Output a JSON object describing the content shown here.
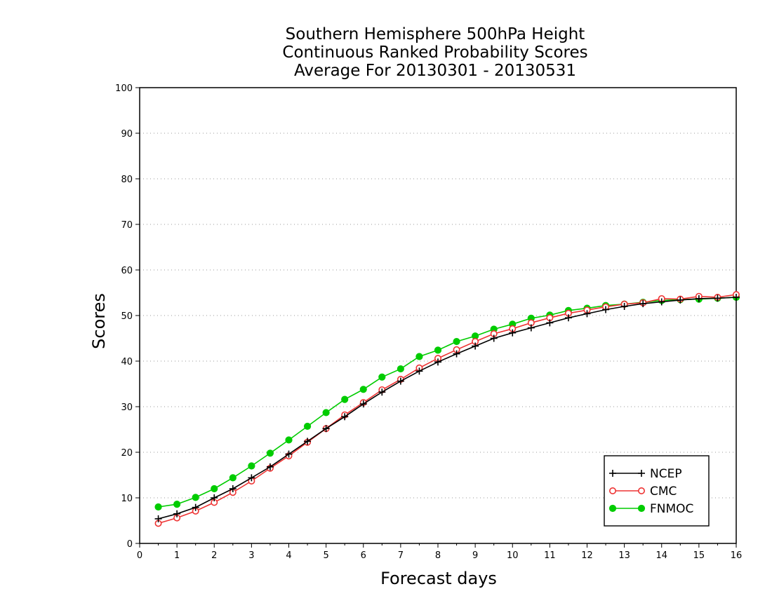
{
  "chart_data": {
    "type": "line",
    "title": [
      "Southern Hemisphere 500hPa Height",
      "Continuous Ranked Probability Scores",
      "Average For 20130301  -  20130531"
    ],
    "xlabel": "Forecast days",
    "ylabel": "Scores",
    "xlim": [
      0,
      16
    ],
    "ylim": [
      0,
      100
    ],
    "xticks": [
      0,
      1,
      2,
      3,
      4,
      5,
      6,
      7,
      8,
      9,
      10,
      11,
      12,
      13,
      14,
      15,
      16
    ],
    "yticks": [
      0,
      10,
      20,
      30,
      40,
      50,
      60,
      70,
      80,
      90,
      100
    ],
    "grid": "horizontal dotted",
    "legend_position": "bottom-right",
    "x": [
      0.5,
      1,
      1.5,
      2,
      2.5,
      3,
      3.5,
      4,
      4.5,
      5,
      5.5,
      6,
      6.5,
      7,
      7.5,
      8,
      8.5,
      9,
      9.5,
      10,
      10.5,
      11,
      11.5,
      12,
      12.5,
      13,
      13.5,
      14,
      14.5,
      15,
      15.5,
      16
    ],
    "series": [
      {
        "name": "NCEP",
        "color": "#000000",
        "marker": "plus",
        "values": [
          5.4,
          6.5,
          7.9,
          10.0,
          12.0,
          14.4,
          16.8,
          19.6,
          22.4,
          25.2,
          27.8,
          30.6,
          33.2,
          35.6,
          37.8,
          39.8,
          41.6,
          43.3,
          45.0,
          46.2,
          47.3,
          48.4,
          49.5,
          50.4,
          51.3,
          52.0,
          52.6,
          53.0,
          53.4,
          53.7,
          53.8,
          54.0
        ]
      },
      {
        "name": "CMC",
        "color": "#ee3333",
        "marker": "open-circle",
        "values": [
          4.4,
          5.6,
          7.1,
          9.0,
          11.2,
          13.7,
          16.5,
          19.2,
          22.2,
          25.2,
          28.2,
          30.9,
          33.7,
          36.0,
          38.5,
          40.6,
          42.5,
          44.3,
          46.0,
          47.1,
          48.4,
          49.5,
          50.5,
          51.2,
          51.9,
          52.5,
          52.8,
          53.7,
          53.6,
          54.2,
          54.0,
          54.6
        ]
      },
      {
        "name": "FNMOC",
        "color": "#00cc00",
        "marker": "filled-circle",
        "values": [
          8.0,
          8.6,
          10.1,
          12.0,
          14.4,
          17.0,
          19.8,
          22.7,
          25.7,
          28.7,
          31.6,
          33.8,
          36.5,
          38.3,
          41.0,
          42.4,
          44.3,
          45.5,
          47.0,
          48.1,
          49.4,
          50.1,
          51.1,
          51.6,
          52.2,
          52.5,
          52.9,
          53.3,
          53.5,
          53.6,
          53.8,
          54.0
        ]
      }
    ]
  }
}
